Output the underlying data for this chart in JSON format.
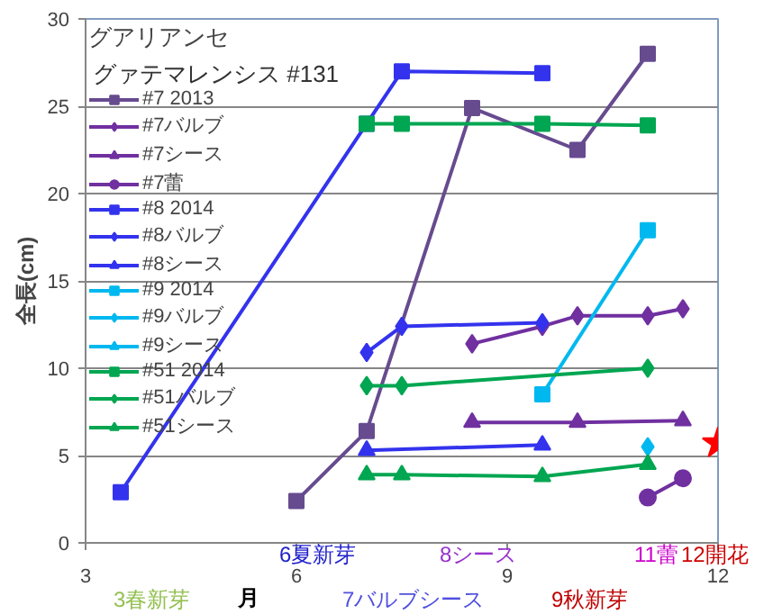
{
  "chart_data": {
    "type": "line",
    "title": "グアリアンセ",
    "subtitle": "グァテマレンシス #131",
    "xlabel": "月",
    "ylabel": "全長(cm)",
    "xlim": [
      3,
      12
    ],
    "xticks": [
      3,
      6,
      9,
      12
    ],
    "ylim": [
      0,
      30
    ],
    "yticks": [
      0,
      5,
      10,
      15,
      20,
      25,
      30
    ],
    "grid": "y",
    "legend": "top left",
    "series": [
      {
        "name": "#7 2013",
        "color": "#674b8f",
        "marker": "square",
        "x": [
          6,
          7,
          8.5,
          10,
          11
        ],
        "values": [
          2.4,
          6.4,
          24.9,
          22.5,
          28.0
        ]
      },
      {
        "name": "#7バルブ",
        "color": "#7030a0",
        "marker": "diamond",
        "x": [
          8.5,
          9.5,
          10,
          11,
          11.5
        ],
        "values": [
          11.4,
          12.4,
          13.0,
          13.0,
          13.4
        ]
      },
      {
        "name": "#7シース",
        "color": "#7030a0",
        "marker": "triangle",
        "x": [
          8.5,
          10,
          11.5
        ],
        "values": [
          6.9,
          6.9,
          7.0
        ]
      },
      {
        "name": "#7蕾",
        "color": "#7030a0",
        "marker": "circle",
        "x": [
          11,
          11.5
        ],
        "values": [
          2.6,
          3.7
        ]
      },
      {
        "name": "#8 2014",
        "color": "#3333ee",
        "marker": "square",
        "x": [
          3.5,
          7,
          7.5,
          9.5
        ],
        "values": [
          2.9,
          24.0,
          27.0,
          26.9
        ]
      },
      {
        "name": "#8バルブ",
        "color": "#3333ee",
        "marker": "diamond",
        "x": [
          7,
          7.5,
          9.5
        ],
        "values": [
          10.9,
          12.4,
          12.6
        ]
      },
      {
        "name": "#8シース",
        "color": "#3333ee",
        "marker": "triangle",
        "x": [
          7,
          9.5
        ],
        "values": [
          5.3,
          5.6
        ]
      },
      {
        "name": "#9 2014",
        "color": "#00b8f0",
        "marker": "square",
        "x": [
          9.5,
          11
        ],
        "values": [
          8.5,
          17.9
        ]
      },
      {
        "name": "#9バルブ",
        "color": "#00b8f0",
        "marker": "diamond",
        "x": [
          11
        ],
        "values": [
          5.5
        ]
      },
      {
        "name": "#9シース",
        "color": "#00b8f0",
        "marker": "triangle"
      },
      {
        "name": "#51 2014",
        "color": "#00a651",
        "marker": "square",
        "x": [
          7,
          7.5,
          9.5,
          11
        ],
        "values": [
          24.0,
          24.0,
          24.0,
          23.9
        ]
      },
      {
        "name": "#51バルブ",
        "color": "#00a651",
        "marker": "diamond",
        "x": [
          7,
          7.5,
          11
        ],
        "values": [
          9.0,
          9.0,
          10.0
        ]
      },
      {
        "name": "#51シース",
        "color": "#00a651",
        "marker": "triangle",
        "x": [
          7,
          7.5,
          9.5,
          11
        ],
        "values": [
          3.9,
          3.9,
          3.8,
          4.5
        ]
      },
      {
        "type": "scatter",
        "color": "#ff0000",
        "marker": "star",
        "x": [
          12
        ],
        "values": [
          5.7
        ]
      }
    ],
    "annotations": [
      "3春新芽",
      "6夏新芽",
      "7バルブシース",
      "8シース",
      "9秋新芽",
      "11蕾",
      "12開花"
    ]
  }
}
